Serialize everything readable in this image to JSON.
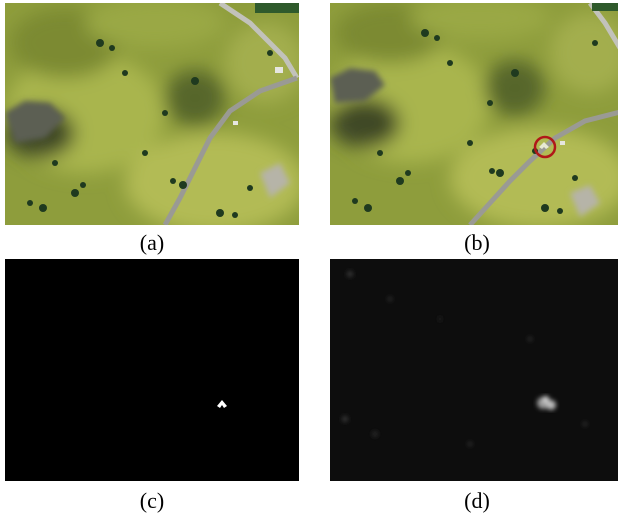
{
  "figure": {
    "panels": [
      {
        "id": "a",
        "caption": "(a)"
      },
      {
        "id": "b",
        "caption": "(b)"
      },
      {
        "id": "c",
        "caption": "(c)"
      },
      {
        "id": "d",
        "caption": "(d)"
      }
    ]
  },
  "colors": {
    "grass": "#8e9d3c",
    "grass_light": "#a9b54e",
    "grass_dark": "#5f6c2a",
    "road": "#9a9a94",
    "trees": "#1f3a1f",
    "marker_ring": "#b01818",
    "mask_bg": "#000000",
    "mask_fg": "#ffffff"
  }
}
